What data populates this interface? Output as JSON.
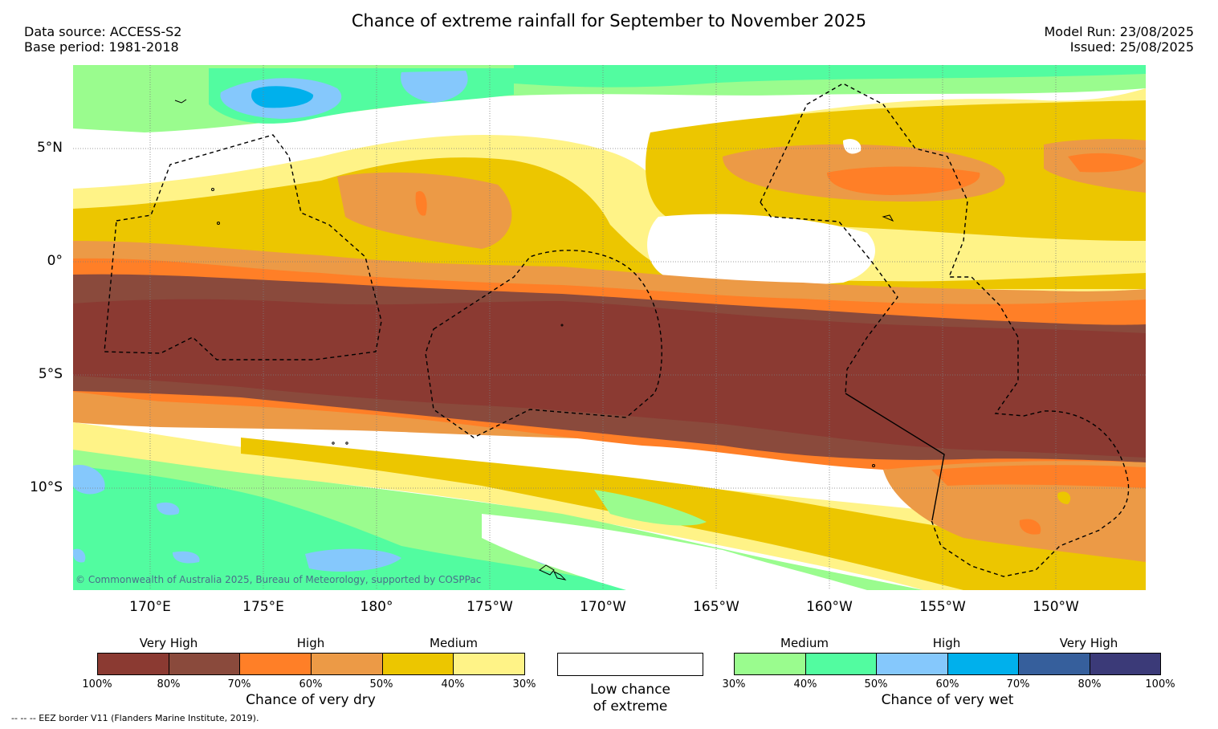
{
  "title": "Chance of extreme rainfall for September to November 2025",
  "meta_left": [
    "Data source: ACCESS-S2",
    "Base period: 1981-2018"
  ],
  "meta_right": [
    "Model Run: 23/08/2025",
    "Issued: 25/08/2025"
  ],
  "latitude_labels": [
    "5°N",
    "0°",
    "5°S",
    "10°S"
  ],
  "longitude_labels": [
    "170°E",
    "175°E",
    "180°",
    "175°W",
    "170°W",
    "165°W",
    "160°W",
    "155°W",
    "150°W"
  ],
  "copyright": "© Commonwealth of Australia 2025, Bureau of Meteorology, supported by COSPPac",
  "dry_legend": {
    "categories": [
      "Very High",
      "High",
      "Medium"
    ],
    "ticks": [
      "100%",
      "80%",
      "70%",
      "60%",
      "50%",
      "40%",
      "30%"
    ],
    "colors": [
      "#8b3a32",
      "#8a4a3c",
      "#ff7f27",
      "#ec9a46",
      "#ecc600",
      "#fff387"
    ],
    "title": "Chance of very dry"
  },
  "low_legend": {
    "line1": "Low chance",
    "line2": "of extreme"
  },
  "wet_legend": {
    "categories": [
      "Medium",
      "High",
      "Very High"
    ],
    "ticks": [
      "30%",
      "40%",
      "50%",
      "60%",
      "70%",
      "80%",
      "100%"
    ],
    "colors": [
      "#9afc8e",
      "#52fca0",
      "#85c8fc",
      "#00b0ec",
      "#365f9c",
      "#3b3a78"
    ],
    "title": "Chance of very wet"
  },
  "footnote": "-- -- -- EEZ border V11 (Flanders Marine Institute, 2019)."
}
